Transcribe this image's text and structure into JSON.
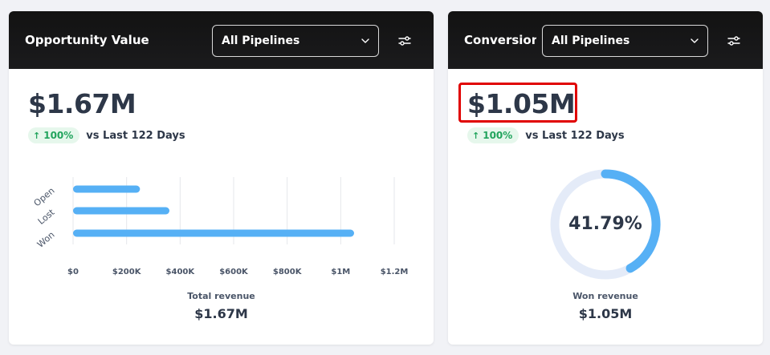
{
  "cards": {
    "opportunity": {
      "title": "Opportunity Value",
      "pipeline_select": "All Pipelines",
      "value": "$1.67M",
      "change": "100%",
      "comparison": "vs Last 122 Days",
      "footer_label": "Total revenue",
      "footer_value": "$1.67M"
    },
    "conversion": {
      "title": "Conversion",
      "pipeline_select": "All Pipelines",
      "value": "$1.05M",
      "change": "100%",
      "comparison": "vs Last 122 Days",
      "donut_label": "41.79%",
      "footer_label": "Won revenue",
      "footer_value": "$1.05M"
    }
  },
  "colors": {
    "bar": "#56b0f5",
    "trend_up": "#22a45d",
    "donut_track": "#e4ebf8",
    "highlight": "#e00000"
  },
  "icons": {
    "filter": "sliders-icon",
    "chevron": "chevron-down-icon",
    "trend": "arrow-up-icon"
  },
  "chart_data": [
    {
      "type": "bar",
      "orientation": "horizontal",
      "categories": [
        "Open",
        "Lost",
        "Won"
      ],
      "values": [
        250000,
        360000,
        1050000
      ],
      "xticks": [
        "$0",
        "$200K",
        "$400K",
        "$600K",
        "$800K",
        "$1M",
        "$1.2M"
      ],
      "xlim": [
        0,
        1200000
      ],
      "grid": true
    },
    {
      "type": "pie",
      "variant": "donut",
      "values": [
        41.79,
        58.21
      ],
      "center_label": "41.79%"
    }
  ]
}
